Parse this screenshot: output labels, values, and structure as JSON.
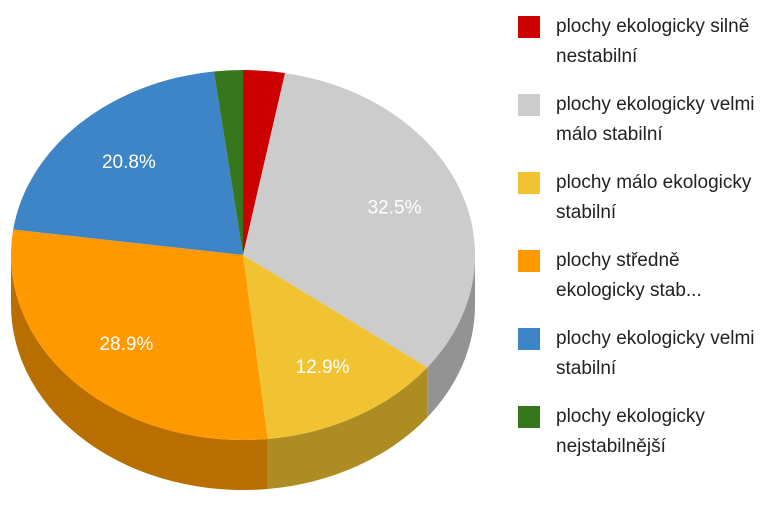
{
  "chart_data": {
    "type": "pie3d",
    "categories": [
      "plochy ekologicky silně nestabilní",
      "plochy ekologicky velmi málo stabilní",
      "plochy málo ekologicky stabilní",
      "plochy středně ekologicky stab...",
      "plochy ekologicky velmi stabilní",
      "plochy ekologicky nejstabilnější"
    ],
    "values": [
      2.9,
      32.5,
      12.9,
      28.9,
      20.8,
      2.0
    ],
    "value_labels": [
      null,
      "32.5%",
      "12.9%",
      "28.9%",
      "20.8%",
      null
    ],
    "colors": [
      "#cc0000",
      "#cccccc",
      "#f1c232",
      "#ff9900",
      "#3d85c6",
      "#38761d"
    ],
    "legend": "right"
  }
}
